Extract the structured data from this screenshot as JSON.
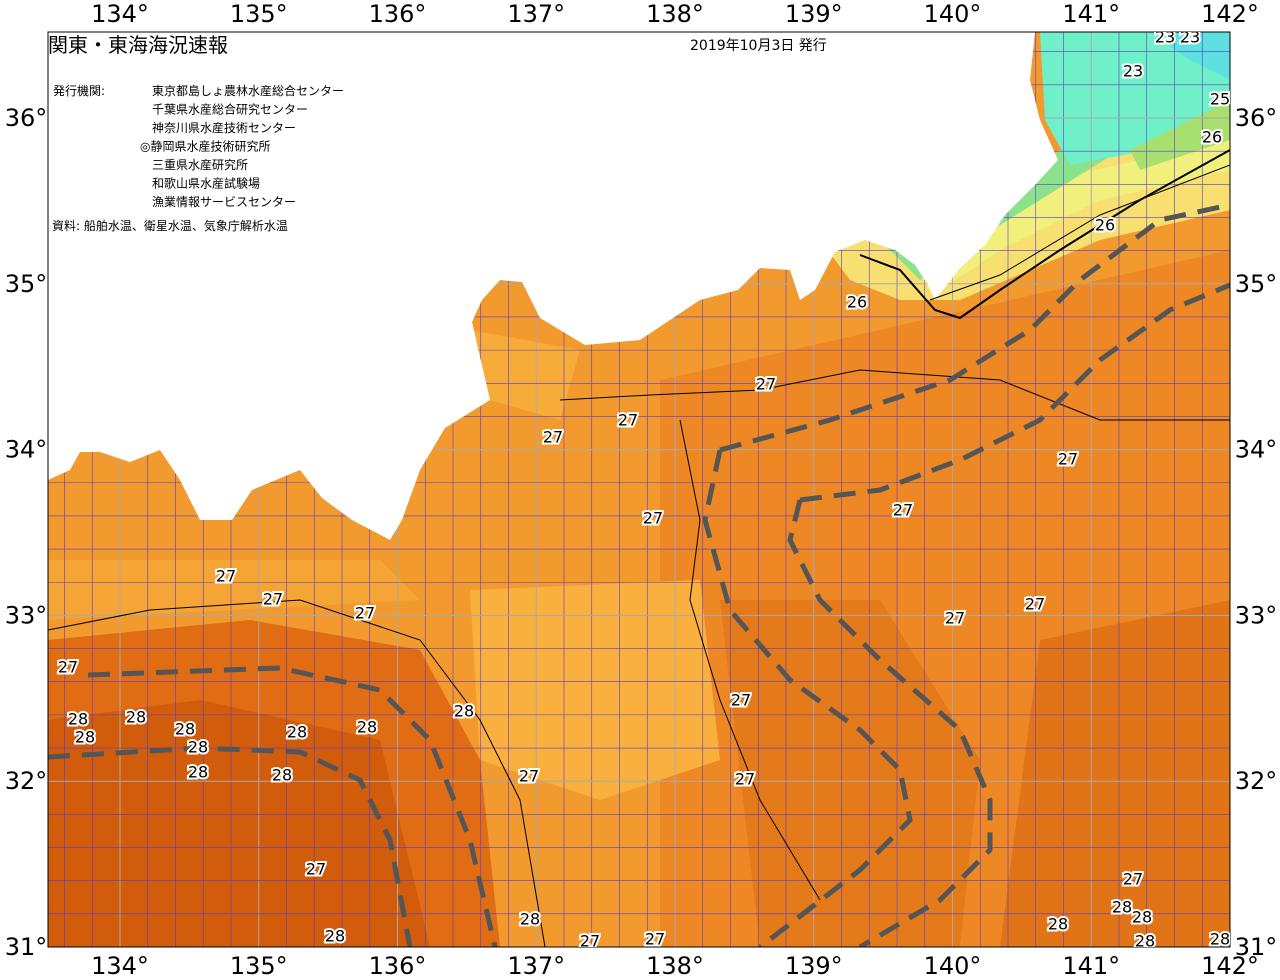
{
  "header": {
    "title": "関東・東海海況速報",
    "date": "2019年10月3日 発行",
    "issuer_label": "発行機関:",
    "issuers": [
      "東京都島しょ農林水産総合センター",
      "千葉県水産総合研究センター",
      "神奈川県水産技術センター",
      "◎静岡県水産技術研究所",
      "三重県水産研究所",
      "和歌山県水産試験場",
      "漁業情報サービスセンター"
    ],
    "source": "資料: 船舶水温、衛星水温、気象庁解析水温"
  },
  "map": {
    "longitude_labels": [
      "134°",
      "135°",
      "136°",
      "137°",
      "138°",
      "139°",
      "140°",
      "141°",
      "142°"
    ],
    "latitude_labels": [
      "31°",
      "32°",
      "33°",
      "34°",
      "35°",
      "36°"
    ],
    "contour_labels": [
      23,
      23,
      23,
      25,
      26,
      26,
      26,
      27,
      27,
      27,
      27,
      27,
      27,
      27,
      27,
      27,
      27,
      27,
      27,
      28,
      28,
      28,
      28,
      28,
      28,
      28,
      28,
      28,
      28,
      27,
      27,
      27,
      27,
      28,
      28,
      27,
      27,
      27,
      28,
      28,
      28,
      28,
      28
    ]
  }
}
